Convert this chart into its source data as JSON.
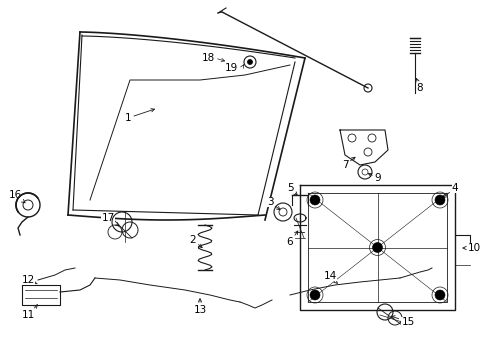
{
  "bg_color": "#ffffff",
  "line_color": "#1a1a1a",
  "label_color": "#000000",
  "figsize": [
    4.9,
    3.6
  ],
  "dpi": 100,
  "font_size": 7.5
}
